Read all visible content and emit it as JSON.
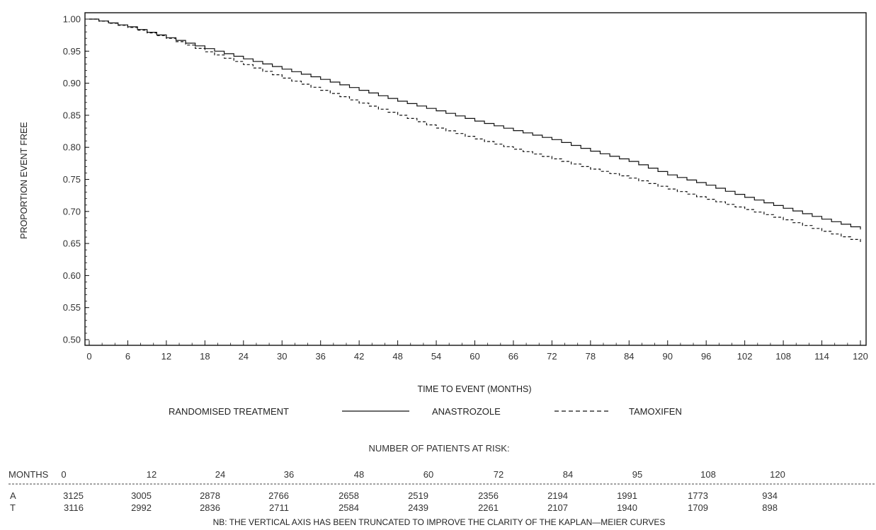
{
  "chart_data": {
    "type": "line",
    "title": "",
    "xlabel": "TIME TO EVENT (MONTHS)",
    "ylabel": "PROPORTION EVENT FREE",
    "xlim": [
      0,
      120
    ],
    "ylim": [
      0.5,
      1.0
    ],
    "x_ticks": [
      0,
      6,
      12,
      18,
      24,
      30,
      36,
      42,
      48,
      54,
      60,
      66,
      72,
      78,
      84,
      90,
      96,
      102,
      108,
      114,
      120
    ],
    "y_ticks": [
      "0.50",
      "0.55",
      "0.60",
      "0.65",
      "0.70",
      "0.75",
      "0.80",
      "0.85",
      "0.90",
      "0.95",
      "1.00"
    ],
    "grid": false,
    "legend": {
      "title": "RANDOMISED TREATMENT",
      "placement": "bottom"
    },
    "series": [
      {
        "name": "ANASTROZOLE",
        "style": "solid",
        "x": [
          0,
          6,
          12,
          18,
          24,
          30,
          36,
          42,
          48,
          54,
          60,
          66,
          72,
          78,
          84,
          90,
          96,
          102,
          108,
          114,
          120
        ],
        "y": [
          1.0,
          0.988,
          0.971,
          0.954,
          0.938,
          0.922,
          0.906,
          0.889,
          0.872,
          0.857,
          0.841,
          0.826,
          0.812,
          0.794,
          0.778,
          0.757,
          0.741,
          0.722,
          0.705,
          0.688,
          0.672
        ]
      },
      {
        "name": "TAMOXIFEN",
        "style": "dashed",
        "x": [
          0,
          6,
          12,
          18,
          24,
          30,
          36,
          42,
          48,
          54,
          60,
          66,
          72,
          78,
          84,
          90,
          96,
          102,
          108,
          114,
          120
        ],
        "y": [
          1.0,
          0.987,
          0.97,
          0.949,
          0.929,
          0.908,
          0.889,
          0.869,
          0.85,
          0.83,
          0.813,
          0.797,
          0.782,
          0.766,
          0.752,
          0.735,
          0.719,
          0.703,
          0.687,
          0.669,
          0.652
        ]
      }
    ]
  },
  "risk_table": {
    "title": "NUMBER OF PATIENTS AT RISK:",
    "months_label": "MONTHS",
    "months": [
      "0",
      "12",
      "24",
      "36",
      "48",
      "60",
      "72",
      "84",
      "95",
      "108",
      "120"
    ],
    "rows": [
      {
        "label": "A",
        "values": [
          "3125",
          "3005",
          "2878",
          "2766",
          "2658",
          "2519",
          "2356",
          "2194",
          "1991",
          "1773",
          "934"
        ]
      },
      {
        "label": "T",
        "values": [
          "3116",
          "2992",
          "2836",
          "2711",
          "2584",
          "2439",
          "2261",
          "2107",
          "1940",
          "1709",
          "898"
        ]
      }
    ]
  },
  "note": "NB: THE VERTICAL AXIS HAS BEEN TRUNCATED TO IMPROVE THE CLARITY OF THE KAPLAN—MEIER CURVES"
}
